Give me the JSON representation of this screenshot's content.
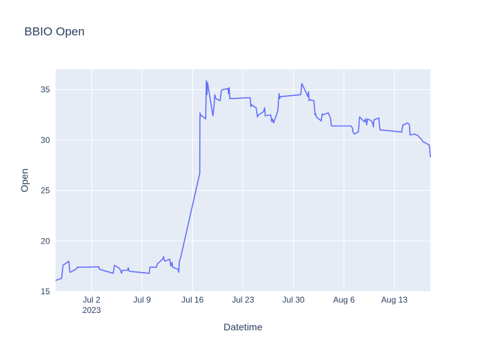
{
  "chart_data": {
    "type": "line",
    "title": "BBIO Open",
    "xlabel": "Datetime",
    "ylabel": "Open",
    "x_range": [
      "2023-06-27",
      "2023-08-18"
    ],
    "ylim": [
      15,
      37
    ],
    "y_ticks": [
      15,
      20,
      25,
      30,
      35
    ],
    "x_ticks": [
      {
        "date": "2023-07-02",
        "label": "Jul 2",
        "sublabel": "2023"
      },
      {
        "date": "2023-07-09",
        "label": "Jul 9",
        "sublabel": ""
      },
      {
        "date": "2023-07-16",
        "label": "Jul 16",
        "sublabel": ""
      },
      {
        "date": "2023-07-23",
        "label": "Jul 23",
        "sublabel": ""
      },
      {
        "date": "2023-07-30",
        "label": "Jul 30",
        "sublabel": ""
      },
      {
        "date": "2023-08-06",
        "label": "Aug 6",
        "sublabel": ""
      },
      {
        "date": "2023-08-13",
        "label": "Aug 13",
        "sublabel": ""
      }
    ],
    "grid": true,
    "colors": {
      "line": "#636efa",
      "plot_bg": "#e5ecf6",
      "grid": "#ffffff",
      "text": "#2a3f5f"
    },
    "series": [
      {
        "x": [
          "2023-06-27 00:00",
          "2023-06-27 20:00",
          "2023-06-28 01:00",
          "2023-06-28 20:00",
          "2023-06-29 00:00",
          "2023-06-29 20:00",
          "2023-06-30 00:00",
          "2023-06-30 10:00",
          "2023-07-03 00:00",
          "2023-07-03 02:00",
          "2023-07-05 00:00",
          "2023-07-05 04:00",
          "2023-07-05 20:00",
          "2023-07-06 00:00",
          "2023-07-06 04:00",
          "2023-07-06 06:00",
          "2023-07-07 00:00",
          "2023-07-07 02:00",
          "2023-07-07 04:00",
          "2023-07-07 06:00",
          "2023-07-10 00:00",
          "2023-07-10 02:00",
          "2023-07-11 00:00",
          "2023-07-11 02:00",
          "2023-07-11 20:00",
          "2023-07-12 00:00",
          "2023-07-12 02:00",
          "2023-07-12 04:00",
          "2023-07-12 20:00",
          "2023-07-13 00:00",
          "2023-07-13 04:00",
          "2023-07-13 06:00",
          "2023-07-13 10:00",
          "2023-07-14 00:00",
          "2023-07-14 02:00",
          "2023-07-14 04:00",
          "2023-07-14 08:00",
          "2023-07-17 00:00",
          "2023-07-17 00:30",
          "2023-07-17 01:00",
          "2023-07-17 02:00",
          "2023-07-17 03:00",
          "2023-07-17 20:00",
          "2023-07-17 22:00",
          "2023-07-18 00:00",
          "2023-07-18 02:00",
          "2023-07-18 20:00",
          "2023-07-19 00:00",
          "2023-07-19 02:00",
          "2023-07-19 06:00",
          "2023-07-19 20:00",
          "2023-07-20 00:00",
          "2023-07-20 04:00",
          "2023-07-20 22:00",
          "2023-07-21 00:00",
          "2023-07-21 02:00",
          "2023-07-21 04:00",
          "2023-07-24 00:00",
          "2023-07-24 02:00",
          "2023-07-24 04:00",
          "2023-07-24 20:00",
          "2023-07-25 00:00",
          "2023-07-25 04:00",
          "2023-07-25 20:00",
          "2023-07-26 00:00",
          "2023-07-26 02:00",
          "2023-07-26 20:00",
          "2023-07-27 00:00",
          "2023-07-27 02:00",
          "2023-07-27 06:00",
          "2023-07-27 20:00",
          "2023-07-28 00:00",
          "2023-07-28 02:00",
          "2023-07-28 04:00",
          "2023-07-31 00:00",
          "2023-07-31 04:00",
          "2023-08-01 00:00",
          "2023-08-01 02:00",
          "2023-08-01 04:00",
          "2023-08-01 06:00",
          "2023-08-01 20:00",
          "2023-08-02 00:00",
          "2023-08-02 02:00",
          "2023-08-02 04:00",
          "2023-08-02 20:00",
          "2023-08-03 00:00",
          "2023-08-03 02:00",
          "2023-08-03 20:00",
          "2023-08-04 00:00",
          "2023-08-04 04:00",
          "2023-08-04 06:00",
          "2023-08-07 00:00",
          "2023-08-07 04:00",
          "2023-08-07 06:00",
          "2023-08-07 10:00",
          "2023-08-08 00:00",
          "2023-08-08 04:00",
          "2023-08-08 20:00",
          "2023-08-09 00:00",
          "2023-08-09 04:00",
          "2023-08-09 06:00",
          "2023-08-09 20:00",
          "2023-08-10 00:00",
          "2023-08-10 02:00",
          "2023-08-10 04:00",
          "2023-08-10 20:00",
          "2023-08-11 00:00",
          "2023-08-11 04:00",
          "2023-08-14 00:00",
          "2023-08-14 04:00",
          "2023-08-14 06:00",
          "2023-08-14 20:00",
          "2023-08-15 00:00",
          "2023-08-15 02:00",
          "2023-08-15 04:00",
          "2023-08-15 20:00",
          "2023-08-16 00:00",
          "2023-08-16 04:00",
          "2023-08-16 20:00",
          "2023-08-17 00:00",
          "2023-08-17 02:00",
          "2023-08-17 20:00",
          "2023-08-18 00:00"
        ],
        "y": [
          16.1,
          16.3,
          17.6,
          18.0,
          16.9,
          17.2,
          17.4,
          17.4,
          17.45,
          17.2,
          16.8,
          17.6,
          17.3,
          17.1,
          16.8,
          17.1,
          17.1,
          17.35,
          17.1,
          17.0,
          16.8,
          17.4,
          17.4,
          17.7,
          18.2,
          18.45,
          18.1,
          18.0,
          18.2,
          17.5,
          17.9,
          17.4,
          17.35,
          17.2,
          16.9,
          18.0,
          18.3,
          26.7,
          31.5,
          32.7,
          32.3,
          32.5,
          32.1,
          35.9,
          34.5,
          35.7,
          32.4,
          33.5,
          34.5,
          34.1,
          33.9,
          34.9,
          35.0,
          35.1,
          34.6,
          35.2,
          34.1,
          34.2,
          33.3,
          33.5,
          33.2,
          32.3,
          32.5,
          32.8,
          33.2,
          32.4,
          32.5,
          31.8,
          32.1,
          31.7,
          32.9,
          34.6,
          34.1,
          34.3,
          34.5,
          35.6,
          34.3,
          34.8,
          33.9,
          34.0,
          33.9,
          32.5,
          32.6,
          32.3,
          31.9,
          32.6,
          32.5,
          32.7,
          32.4,
          32.1,
          31.4,
          31.4,
          31.2,
          30.8,
          30.6,
          30.8,
          32.3,
          31.8,
          32.1,
          31.5,
          32.1,
          31.9,
          31.6,
          31.3,
          32.0,
          32.2,
          31.0,
          31.0,
          30.8,
          31.5,
          31.5,
          31.7,
          31.6,
          31.5,
          30.5,
          30.6,
          30.5,
          30.5,
          30.0,
          29.8,
          29.8,
          29.5,
          28.3
        ]
      }
    ]
  }
}
